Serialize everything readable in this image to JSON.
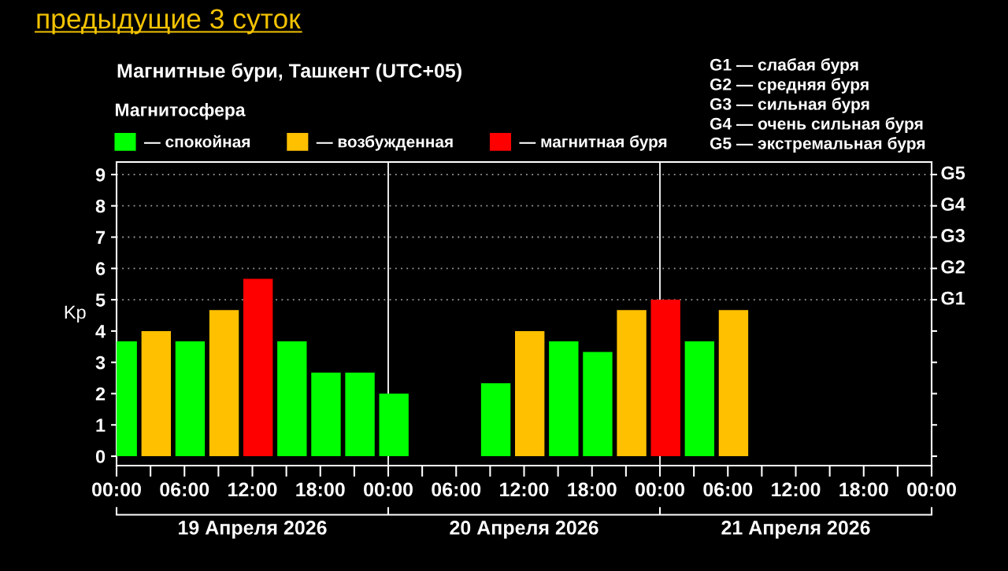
{
  "chart_data": {
    "type": "bar",
    "title": "предыдущие 3 суток",
    "subtitle": "Магнитные бури, Ташкент (UTC+05)",
    "legend_title": "Магнитосфера",
    "ylabel": "Kp",
    "x": [
      "2026-04-19T00:30",
      "2026-04-19T03:30",
      "2026-04-19T06:30",
      "2026-04-19T09:30",
      "2026-04-19T12:30",
      "2026-04-19T15:30",
      "2026-04-19T18:30",
      "2026-04-19T21:30",
      "2026-04-20T00:30",
      "2026-04-20T03:30",
      "2026-04-20T06:30",
      "2026-04-20T09:30",
      "2026-04-20T12:30",
      "2026-04-20T15:30",
      "2026-04-20T18:30",
      "2026-04-20T21:30",
      "2026-04-21T00:30",
      "2026-04-21T03:30",
      "2026-04-21T06:30"
    ],
    "series": [
      {
        "name": "— спокойная",
        "color": "#00ff00",
        "values": [
          3.67,
          null,
          3.67,
          null,
          null,
          3.67,
          2.67,
          2.67,
          2.0,
          null,
          null,
          2.33,
          null,
          3.67,
          3.33,
          null,
          null,
          3.67,
          null
        ]
      },
      {
        "name": "— возбужденная",
        "color": "#ffc000",
        "values": [
          null,
          4.0,
          null,
          4.67,
          null,
          null,
          null,
          null,
          null,
          null,
          null,
          null,
          4.0,
          null,
          null,
          4.67,
          null,
          null,
          4.67
        ]
      },
      {
        "name": "— магнитная буря",
        "color": "#ff0000",
        "values": [
          null,
          null,
          null,
          null,
          5.67,
          null,
          null,
          null,
          null,
          null,
          null,
          null,
          null,
          null,
          null,
          null,
          5.0,
          null,
          null
        ]
      }
    ],
    "xlim": [
      "2026-04-19T00:00",
      "2026-04-22T00:00"
    ],
    "xticks": [
      {
        "value": "2026-04-19T00:00",
        "label": "00:00"
      },
      {
        "value": "2026-04-19T03:00",
        "label": null
      },
      {
        "value": "2026-04-19T06:00",
        "label": "06:00"
      },
      {
        "value": "2026-04-19T09:00",
        "label": null
      },
      {
        "value": "2026-04-19T12:00",
        "label": "12:00"
      },
      {
        "value": "2026-04-19T15:00",
        "label": null
      },
      {
        "value": "2026-04-19T18:00",
        "label": "18:00"
      },
      {
        "value": "2026-04-19T21:00",
        "label": null
      },
      {
        "value": "2026-04-20T00:00",
        "label": "00:00"
      },
      {
        "value": "2026-04-20T03:00",
        "label": null
      },
      {
        "value": "2026-04-20T06:00",
        "label": "06:00"
      },
      {
        "value": "2026-04-20T09:00",
        "label": null
      },
      {
        "value": "2026-04-20T12:00",
        "label": "12:00"
      },
      {
        "value": "2026-04-20T15:00",
        "label": null
      },
      {
        "value": "2026-04-20T18:00",
        "label": "18:00"
      },
      {
        "value": "2026-04-20T21:00",
        "label": null
      },
      {
        "value": "2026-04-21T00:00",
        "label": "00:00"
      },
      {
        "value": "2026-04-21T03:00",
        "label": null
      },
      {
        "value": "2026-04-21T06:00",
        "label": "06:00"
      },
      {
        "value": "2026-04-21T09:00",
        "label": null
      },
      {
        "value": "2026-04-21T12:00",
        "label": "12:00"
      },
      {
        "value": "2026-04-21T15:00",
        "label": null
      },
      {
        "value": "2026-04-21T18:00",
        "label": "18:00"
      },
      {
        "value": "2026-04-21T21:00",
        "label": null
      },
      {
        "value": "2026-04-22T00:00",
        "label": "00:00"
      }
    ],
    "x2lim": [
      "2026-04-19T00:00",
      "2026-04-22T00:00"
    ],
    "x2ticks": [
      {
        "value": "2026-04-19T00:00",
        "label": null
      },
      {
        "value": "2026-04-19T12:00",
        "label": "19 Апреля 2026"
      },
      {
        "value": "2026-04-20T00:00",
        "label": null
      },
      {
        "value": "2026-04-20T12:00",
        "label": "20 Апреля 2026"
      },
      {
        "value": "2026-04-21T00:00",
        "label": null
      },
      {
        "value": "2026-04-21T12:00",
        "label": "21 Апреля 2026"
      },
      {
        "value": "2026-04-22T00:00",
        "label": null
      }
    ],
    "ylim": [
      -0.3,
      9.4
    ],
    "yticks": [
      0,
      1,
      2,
      3,
      4,
      5,
      6,
      7,
      8,
      9
    ],
    "legend": "top left",
    "ref_lines": [
      {
        "axis": "x",
        "value": "2026-04-20T00:00",
        "color": "#ffffff",
        "line_style": "solid"
      },
      {
        "axis": "x",
        "value": "2026-04-21T00:00",
        "color": "#ffffff",
        "line_style": "solid"
      },
      {
        "axis": "y",
        "value": 5,
        "label": "G1",
        "color": "#9a9a9a",
        "line_style": "dotted"
      },
      {
        "axis": "y",
        "value": 6,
        "label": "G2",
        "color": "#9a9a9a",
        "line_style": "dotted"
      },
      {
        "axis": "y",
        "value": 7,
        "label": "G3",
        "color": "#9a9a9a",
        "line_style": "dotted"
      },
      {
        "axis": "y",
        "value": 8,
        "label": "G4",
        "color": "#9a9a9a",
        "line_style": "dotted"
      },
      {
        "axis": "y",
        "value": 9,
        "label": "G5",
        "color": "#9a9a9a",
        "line_style": "dotted"
      }
    ],
    "annotations": [
      "G1 — слабая буря",
      "G2 — средняя буря",
      "G3 — сильная буря",
      "G4 — очень сильная буря",
      "G5 — экстремальная буря"
    ]
  }
}
